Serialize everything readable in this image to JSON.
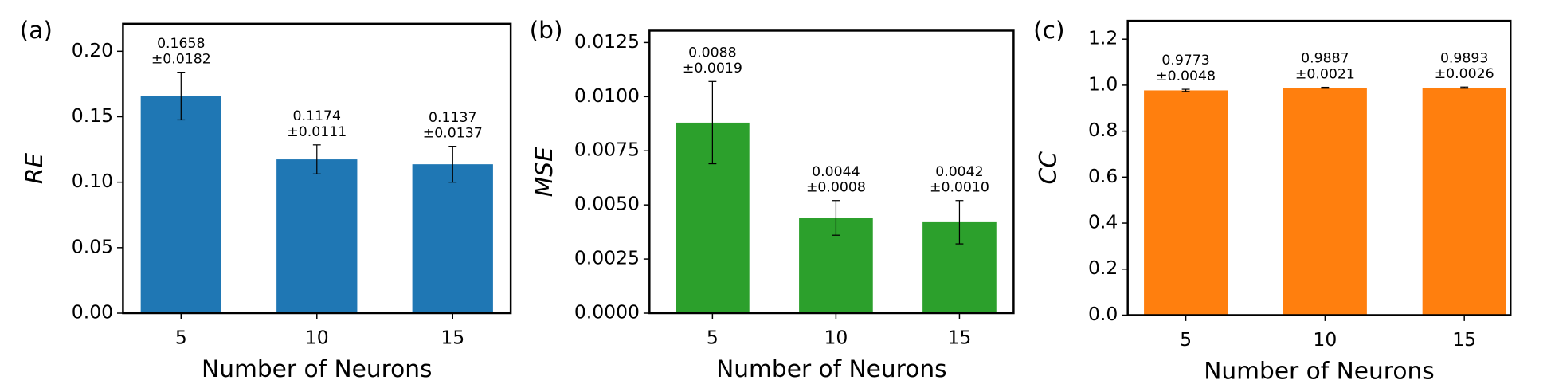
{
  "chart_data": [
    {
      "type": "bar",
      "panel_label": "(a)",
      "ylabel": "RE",
      "xlabel": "Number of Neurons",
      "color": "#1f77b4",
      "categories": [
        "5",
        "10",
        "15"
      ],
      "values": [
        0.1658,
        0.1174,
        0.1137
      ],
      "errors": [
        0.0182,
        0.0111,
        0.0137
      ],
      "error_labels": [
        "±0.0182",
        "±0.0111",
        "±0.0137"
      ],
      "ylim": [
        0,
        0.221
      ],
      "yticks": [
        {
          "value": 0,
          "label": "0.00"
        },
        0.05,
        {
          "value": 0.1,
          "label": "0.10"
        },
        0.15,
        {
          "value": 0.2,
          "label": "0.20"
        }
      ]
    },
    {
      "type": "bar",
      "panel_label": "(b)",
      "ylabel": "MSE",
      "xlabel": "Number of Neurons",
      "color": "#2ca02c",
      "categories": [
        "5",
        "10",
        "15"
      ],
      "values": [
        0.0088,
        0.0044,
        0.0042
      ],
      "errors": [
        0.0019,
        0.0008,
        0.001
      ],
      "error_labels": [
        "±0.0019",
        "±0.0008",
        "±0.0010"
      ],
      "ylim": [
        0,
        0.01305
      ],
      "yticks": [
        {
          "value": 0,
          "label": "0.0000"
        },
        0.0025,
        {
          "value": 0.005,
          "label": "0.0050"
        },
        0.0075,
        {
          "value": 0.01,
          "label": "0.0100"
        },
        0.0125
      ]
    },
    {
      "type": "bar",
      "panel_label": "(c)",
      "ylabel": "CC",
      "xlabel": "Number of Neurons",
      "color": "#ff7f0e",
      "categories": [
        "5",
        "10",
        "15"
      ],
      "values": [
        0.9773,
        0.9887,
        0.9893
      ],
      "errors": [
        0.0048,
        0.0021,
        0.0026
      ],
      "error_labels": [
        "±0.0048",
        "±0.0021",
        "±0.0026"
      ],
      "ylim": [
        0,
        1.28
      ],
      "yticks": [
        {
          "value": 0,
          "label": "0.0"
        },
        0.2,
        0.4,
        0.6,
        0.8,
        {
          "value": 1,
          "label": "1.0"
        },
        1.2
      ]
    }
  ]
}
